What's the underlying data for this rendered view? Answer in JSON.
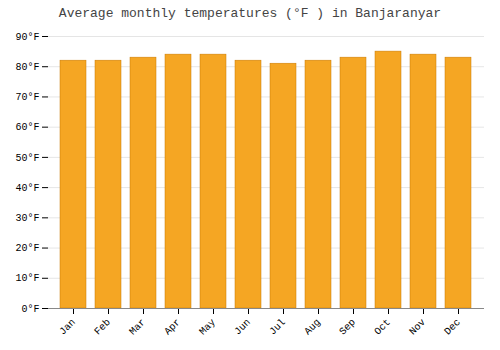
{
  "chart_data": {
    "type": "bar",
    "title": "Average monthly temperatures (°F ) in Banjaranyar",
    "categories": [
      "Jan",
      "Feb",
      "Mar",
      "Apr",
      "May",
      "Jun",
      "Jul",
      "Aug",
      "Sep",
      "Oct",
      "Nov",
      "Dec"
    ],
    "values": [
      82,
      82,
      83,
      84,
      84,
      82,
      81,
      82,
      83,
      85,
      84,
      83
    ],
    "color": "#F5A623",
    "ylim": [
      0,
      90
    ],
    "yticks": [
      {
        "value": 0,
        "label": "0°F"
      },
      {
        "value": 10,
        "label": "10°F"
      },
      {
        "value": 20,
        "label": "20°F"
      },
      {
        "value": 30,
        "label": "30°F"
      },
      {
        "value": 40,
        "label": "40°F"
      },
      {
        "value": 50,
        "label": "50°F"
      },
      {
        "value": 60,
        "label": "60°F"
      },
      {
        "value": 70,
        "label": "70°F"
      },
      {
        "value": 80,
        "label": "80°F"
      },
      {
        "value": 90,
        "label": "90°F"
      }
    ],
    "grid": true
  }
}
